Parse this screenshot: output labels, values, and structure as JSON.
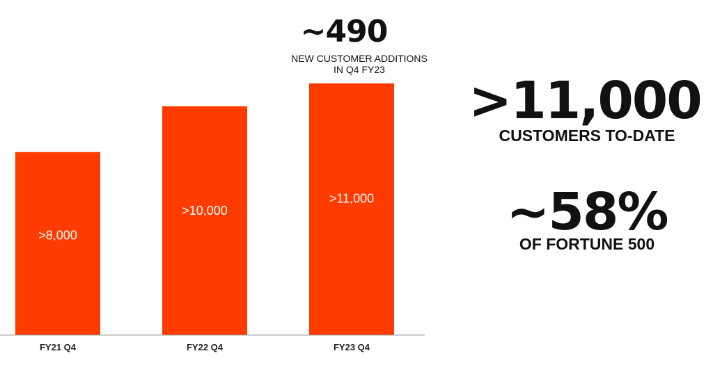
{
  "chart_data": {
    "type": "bar",
    "categories": [
      "FY21 Q4",
      "FY22 Q4",
      "FY23 Q4"
    ],
    "values": [
      8000,
      10000,
      11000
    ],
    "data_labels": [
      ">8,000",
      ">10,000",
      ">11,000"
    ],
    "bar_color": "#FF3B00",
    "grid": false,
    "title": "",
    "xlabel": "",
    "ylabel": ""
  },
  "callout": {
    "value": "~490",
    "caption_line1": "NEW CUSTOMER ADDITIONS",
    "caption_line2": "IN Q4 FY23"
  },
  "stats": {
    "customers": {
      "value": ">11,000",
      "label": "CUSTOMERS TO-DATE"
    },
    "fortune": {
      "value": "~58%",
      "label": "OF FORTUNE 500"
    }
  }
}
